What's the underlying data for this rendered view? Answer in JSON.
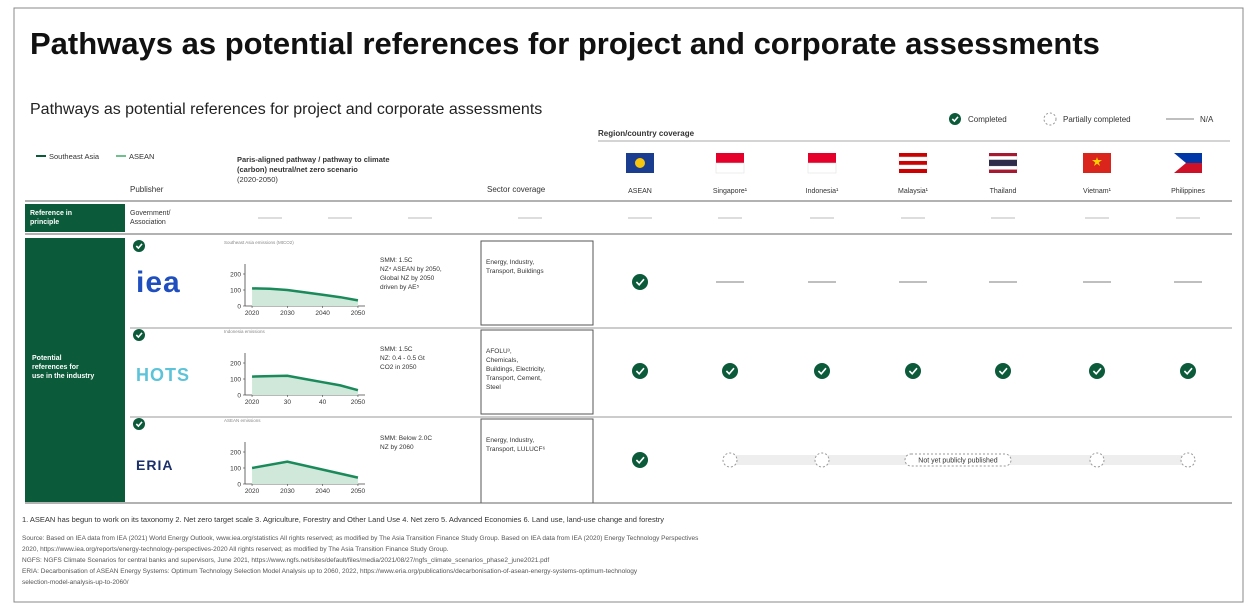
{
  "header": {
    "title": "Pathways as potential references for project and corporate assessments",
    "subtitle": "Pathways as potential references for project and corporate assessments"
  },
  "legend": [
    "Completed",
    "Partially completed",
    "N/A"
  ],
  "series_legend": [
    "Southeast Asia",
    "ASEAN"
  ],
  "columns": {
    "publisher": "Publisher",
    "pathway": [
      "Paris-aligned pathway / pathway to climate",
      "(carbon) neutral/net zero scenario",
      "(2020-2050)"
    ],
    "sector": "Sector coverage",
    "region": "Region/country coverage",
    "countries": [
      "ASEAN",
      "Singapore¹",
      "Indonesia¹",
      "Malaysia¹",
      "Thailand",
      "Vietnam¹",
      "Philippines"
    ]
  },
  "reference_row": {
    "label": [
      "Reference in",
      "principle"
    ],
    "sub": [
      "Government/",
      "Association"
    ]
  },
  "group_label": [
    "Potential",
    "references for",
    "use in the industry"
  ],
  "rows": [
    {
      "publisher": "iea",
      "chart": {
        "title": "Southeast Asia emissions (MtCO2)",
        "xlim": [
          2018,
          2052
        ],
        "xticks": [
          2020,
          2030,
          2040,
          2050
        ],
        "ylim": [
          0,
          250
        ],
        "yticks": [
          0,
          100,
          200
        ],
        "x": [
          2020,
          2025,
          2030,
          2035,
          2040,
          2045,
          2050
        ],
        "values": [
          110,
          108,
          100,
          85,
          70,
          55,
          35
        ]
      },
      "notes": [
        "SMM: 1.5C",
        "NZ⁴ ASEAN by 2050,",
        "Global NZ by 2050",
        "driven by AE⁵"
      ],
      "sector": [
        "Energy, Industry,",
        "Transport, Buildings"
      ],
      "coverage": [
        "completed",
        "na",
        "na",
        "na",
        "na",
        "na",
        "na"
      ]
    },
    {
      "publisher": "HOTS",
      "chart": {
        "title": "Indonesia emissions",
        "xlim": [
          2018,
          2052
        ],
        "xticks": [
          2020,
          {
            "value": 2030,
            "label": "30"
          },
          {
            "value": 2040,
            "label": "40"
          },
          2050
        ],
        "ylim": [
          0,
          250
        ],
        "yticks": [
          0,
          100,
          200
        ],
        "x": [
          2020,
          2025,
          2030,
          2035,
          2040,
          2045,
          2050
        ],
        "values": [
          115,
          118,
          120,
          100,
          80,
          60,
          30
        ]
      },
      "notes": [
        "SMM: 1.5C",
        "NZ: 0.4 - 0.5 Gt",
        "CO2 in 2050"
      ],
      "sector": [
        "AFOLU³,",
        "Chemicals,",
        "Buildings, Electricity,",
        "Transport, Cement,",
        "Steel"
      ],
      "coverage": [
        "completed",
        "completed",
        "completed",
        "completed",
        "completed",
        "completed",
        "completed"
      ]
    },
    {
      "publisher": "ERIA",
      "chart": {
        "title": "ASEAN emissions",
        "xlim": [
          2018,
          2052
        ],
        "xticks": [
          2020,
          2030,
          2040,
          2050
        ],
        "ylim": [
          0,
          250
        ],
        "yticks": [
          0,
          100,
          200
        ],
        "x": [
          2020,
          2030,
          2040,
          2050
        ],
        "values": [
          100,
          140,
          90,
          40
        ]
      },
      "notes": [
        "SMM: Below 2.0C",
        "NZ by 2060"
      ],
      "sector": [
        "Energy, Industry,",
        "Transport, LULUCF⁶"
      ],
      "coverage": [
        "completed",
        "partial",
        "partial",
        "note",
        "note",
        "partial",
        "partial"
      ],
      "coverage_note": "Not yet publicly published"
    }
  ],
  "footnotes": "1. ASEAN has begun to work on its taxonomy   2. Net zero target scale   3. Agriculture, Forestry and Other Land Use   4. Net zero   5. Advanced Economies   6. Land use, land-use change and forestry",
  "source": [
    "Source: Based on IEA data from IEA (2021) World Energy Outlook, www.iea.org/statistics All rights reserved; as modified by The Asia Transition Finance Study Group. Based on IEA data from IEA (2020) Energy Technology Perspectives",
    "2020, https://www.iea.org/reports/energy-technology-perspectives-2020 All rights reserved; as modified by The Asia Transition Finance Study Group.",
    "NGFS: NGFS Climate Scenarios for central banks and supervisors, June 2021, https://www.ngfs.net/sites/default/files/media/2021/08/27/ngfs_climate_scenarios_phase2_june2021.pdf",
    "ERIA: Decarbonisation of ASEAN Energy Systems: Optimum Technology Selection Model Analysis up to 2060, 2022, https://www.eria.org/publications/decarbonisation-of-asean-energy-systems-optimum-technology",
    "selection-model-analysis-up-to-2060/"
  ]
}
